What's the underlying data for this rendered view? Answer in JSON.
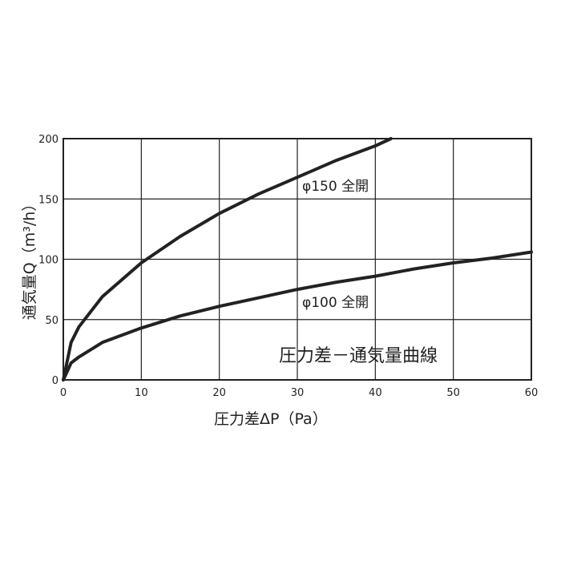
{
  "chart_data": {
    "type": "line",
    "title": "圧力差－通気量曲線",
    "xlabel": "圧力差ΔP（Pa）",
    "ylabel": "通気量Q（m³/h）",
    "xlim": [
      0,
      60
    ],
    "ylim": [
      0,
      200
    ],
    "xticks": [
      0,
      10,
      20,
      30,
      40,
      50,
      60
    ],
    "yticks": [
      0,
      50,
      100,
      150,
      200
    ],
    "xtick_labels": [
      "0",
      "10",
      "20",
      "30",
      "40",
      "50",
      "60"
    ],
    "ytick_labels": [
      "0",
      "50",
      "100",
      "150",
      "200"
    ],
    "grid": true,
    "series": [
      {
        "name": "φ150 全開",
        "x": [
          0,
          1,
          2,
          5,
          10,
          15,
          20,
          25,
          30,
          35,
          40,
          42
        ],
        "y": [
          0,
          31,
          44,
          69,
          97,
          119,
          138,
          154,
          168,
          182,
          194,
          200
        ]
      },
      {
        "name": "φ100 全開",
        "x": [
          0,
          1,
          2,
          5,
          10,
          15,
          20,
          25,
          30,
          35,
          40,
          45,
          50,
          55,
          60
        ],
        "y": [
          0,
          14,
          19,
          31,
          43,
          53,
          61,
          68,
          75,
          81,
          86,
          92,
          97,
          101,
          106
        ]
      }
    ],
    "colors": {
      "line": "#222222",
      "grid": "#222222",
      "frame": "#222222"
    }
  }
}
